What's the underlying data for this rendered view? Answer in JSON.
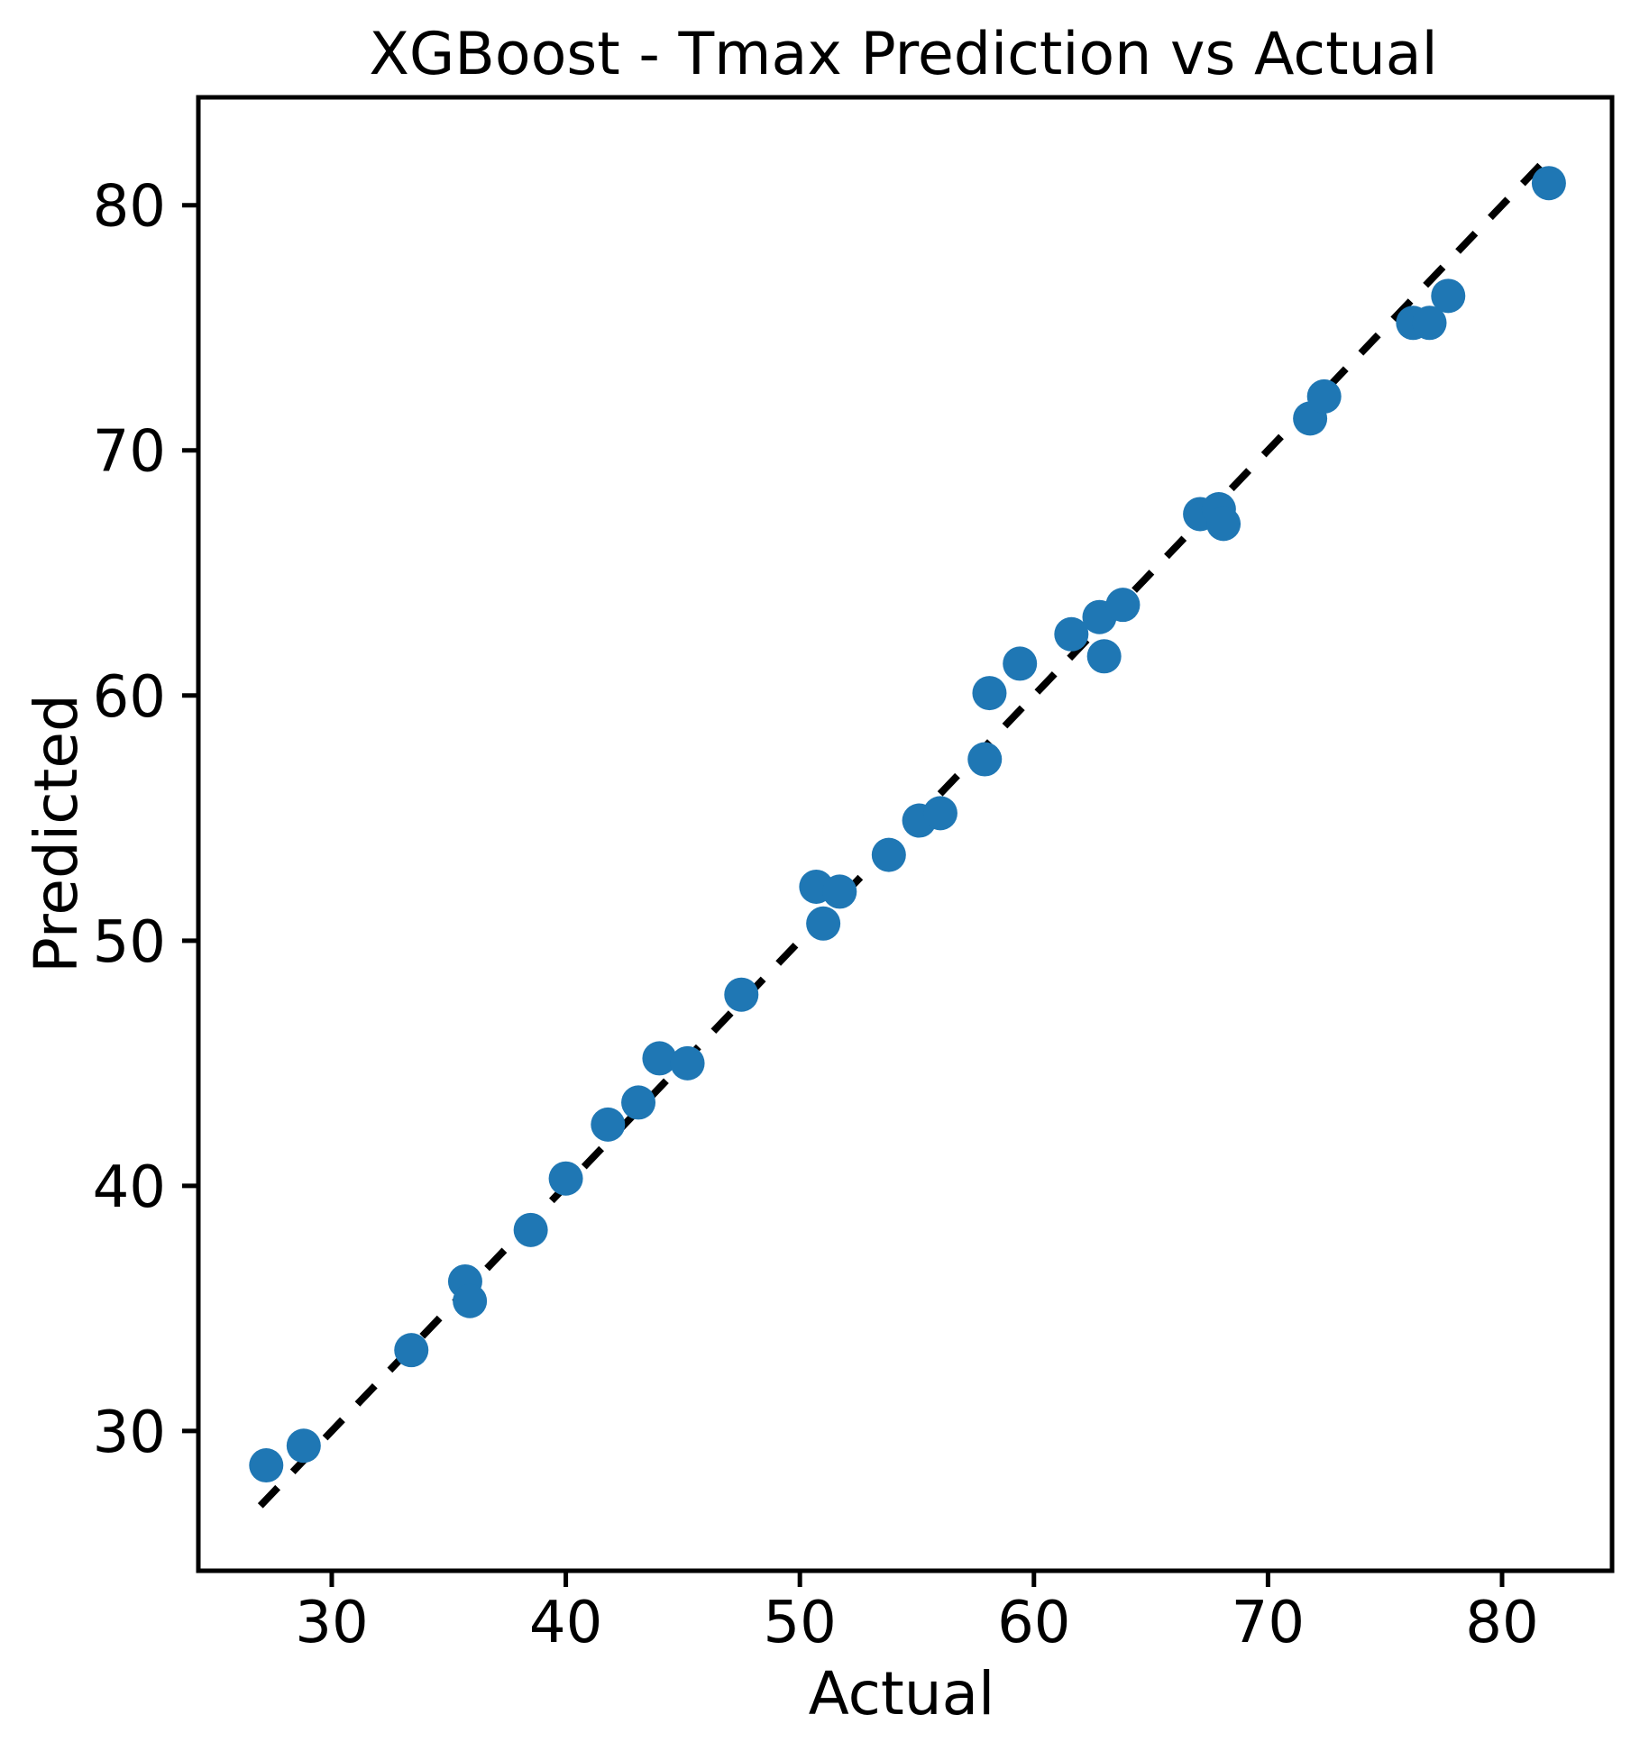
{
  "chart_data": {
    "type": "scatter",
    "title": "XGBoost - Tmax Prediction vs Actual",
    "xlabel": "Actual",
    "ylabel": "Predicted",
    "x_ticks": [
      30,
      40,
      50,
      60,
      70,
      80
    ],
    "y_ticks": [
      30,
      40,
      50,
      60,
      70,
      80
    ],
    "xlim": [
      24.3,
      84.7
    ],
    "ylim": [
      24.3,
      84.4
    ],
    "grid": false,
    "legend_position": "none",
    "marker_color": "#1f77b4",
    "line_color": "#000000",
    "identity_line": {
      "style": "dashed",
      "equation": "y = x",
      "start": 26.95,
      "end": 81.7
    },
    "points": [
      [
        27.2,
        28.6
      ],
      [
        28.8,
        29.4
      ],
      [
        33.4,
        33.3
      ],
      [
        35.7,
        36.1
      ],
      [
        35.9,
        35.3
      ],
      [
        38.5,
        38.2
      ],
      [
        40.0,
        40.3
      ],
      [
        41.8,
        42.5
      ],
      [
        43.1,
        43.4
      ],
      [
        44.0,
        45.2
      ],
      [
        45.2,
        45.0
      ],
      [
        47.5,
        47.8
      ],
      [
        50.7,
        52.2
      ],
      [
        51.7,
        52.0
      ],
      [
        51.0,
        50.7
      ],
      [
        53.8,
        53.5
      ],
      [
        55.1,
        54.9
      ],
      [
        56.0,
        55.2
      ],
      [
        57.9,
        57.4
      ],
      [
        58.1,
        60.1
      ],
      [
        59.4,
        61.3
      ],
      [
        61.6,
        62.5
      ],
      [
        62.8,
        63.2
      ],
      [
        63.8,
        63.7
      ],
      [
        63.0,
        61.6
      ],
      [
        67.1,
        67.4
      ],
      [
        67.9,
        67.6
      ],
      [
        68.1,
        67.0
      ],
      [
        71.8,
        71.3
      ],
      [
        72.4,
        72.2
      ],
      [
        76.2,
        75.2
      ],
      [
        76.9,
        75.2
      ],
      [
        77.7,
        76.3
      ],
      [
        82.0,
        80.9
      ]
    ]
  }
}
